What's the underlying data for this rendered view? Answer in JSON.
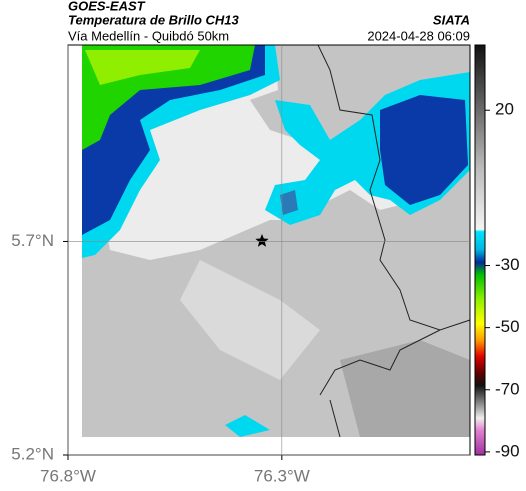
{
  "header": {
    "satellite": "GOES-EAST",
    "product": "Temperatura de Brillo CH13",
    "region": "Vía Medellín - Quibdó 50km",
    "source": "SIATA",
    "datetime": "2024-04-28 06:09"
  },
  "map": {
    "xlim": [
      -76.8,
      -75.86
    ],
    "ylim": [
      5.2,
      6.16
    ],
    "xticks": [
      {
        "value": -76.8,
        "label": "76.8°W"
      },
      {
        "value": -76.3,
        "label": "76.3°W"
      }
    ],
    "yticks": [
      {
        "value": 5.7,
        "label": "5.7°N"
      },
      {
        "value": 5.2,
        "label": "5.2°N"
      }
    ],
    "grid": true
  },
  "colorbar": {
    "lim": [
      -91,
      41
    ],
    "ticks": [
      20,
      -30,
      -50,
      -70,
      -90
    ]
  }
}
